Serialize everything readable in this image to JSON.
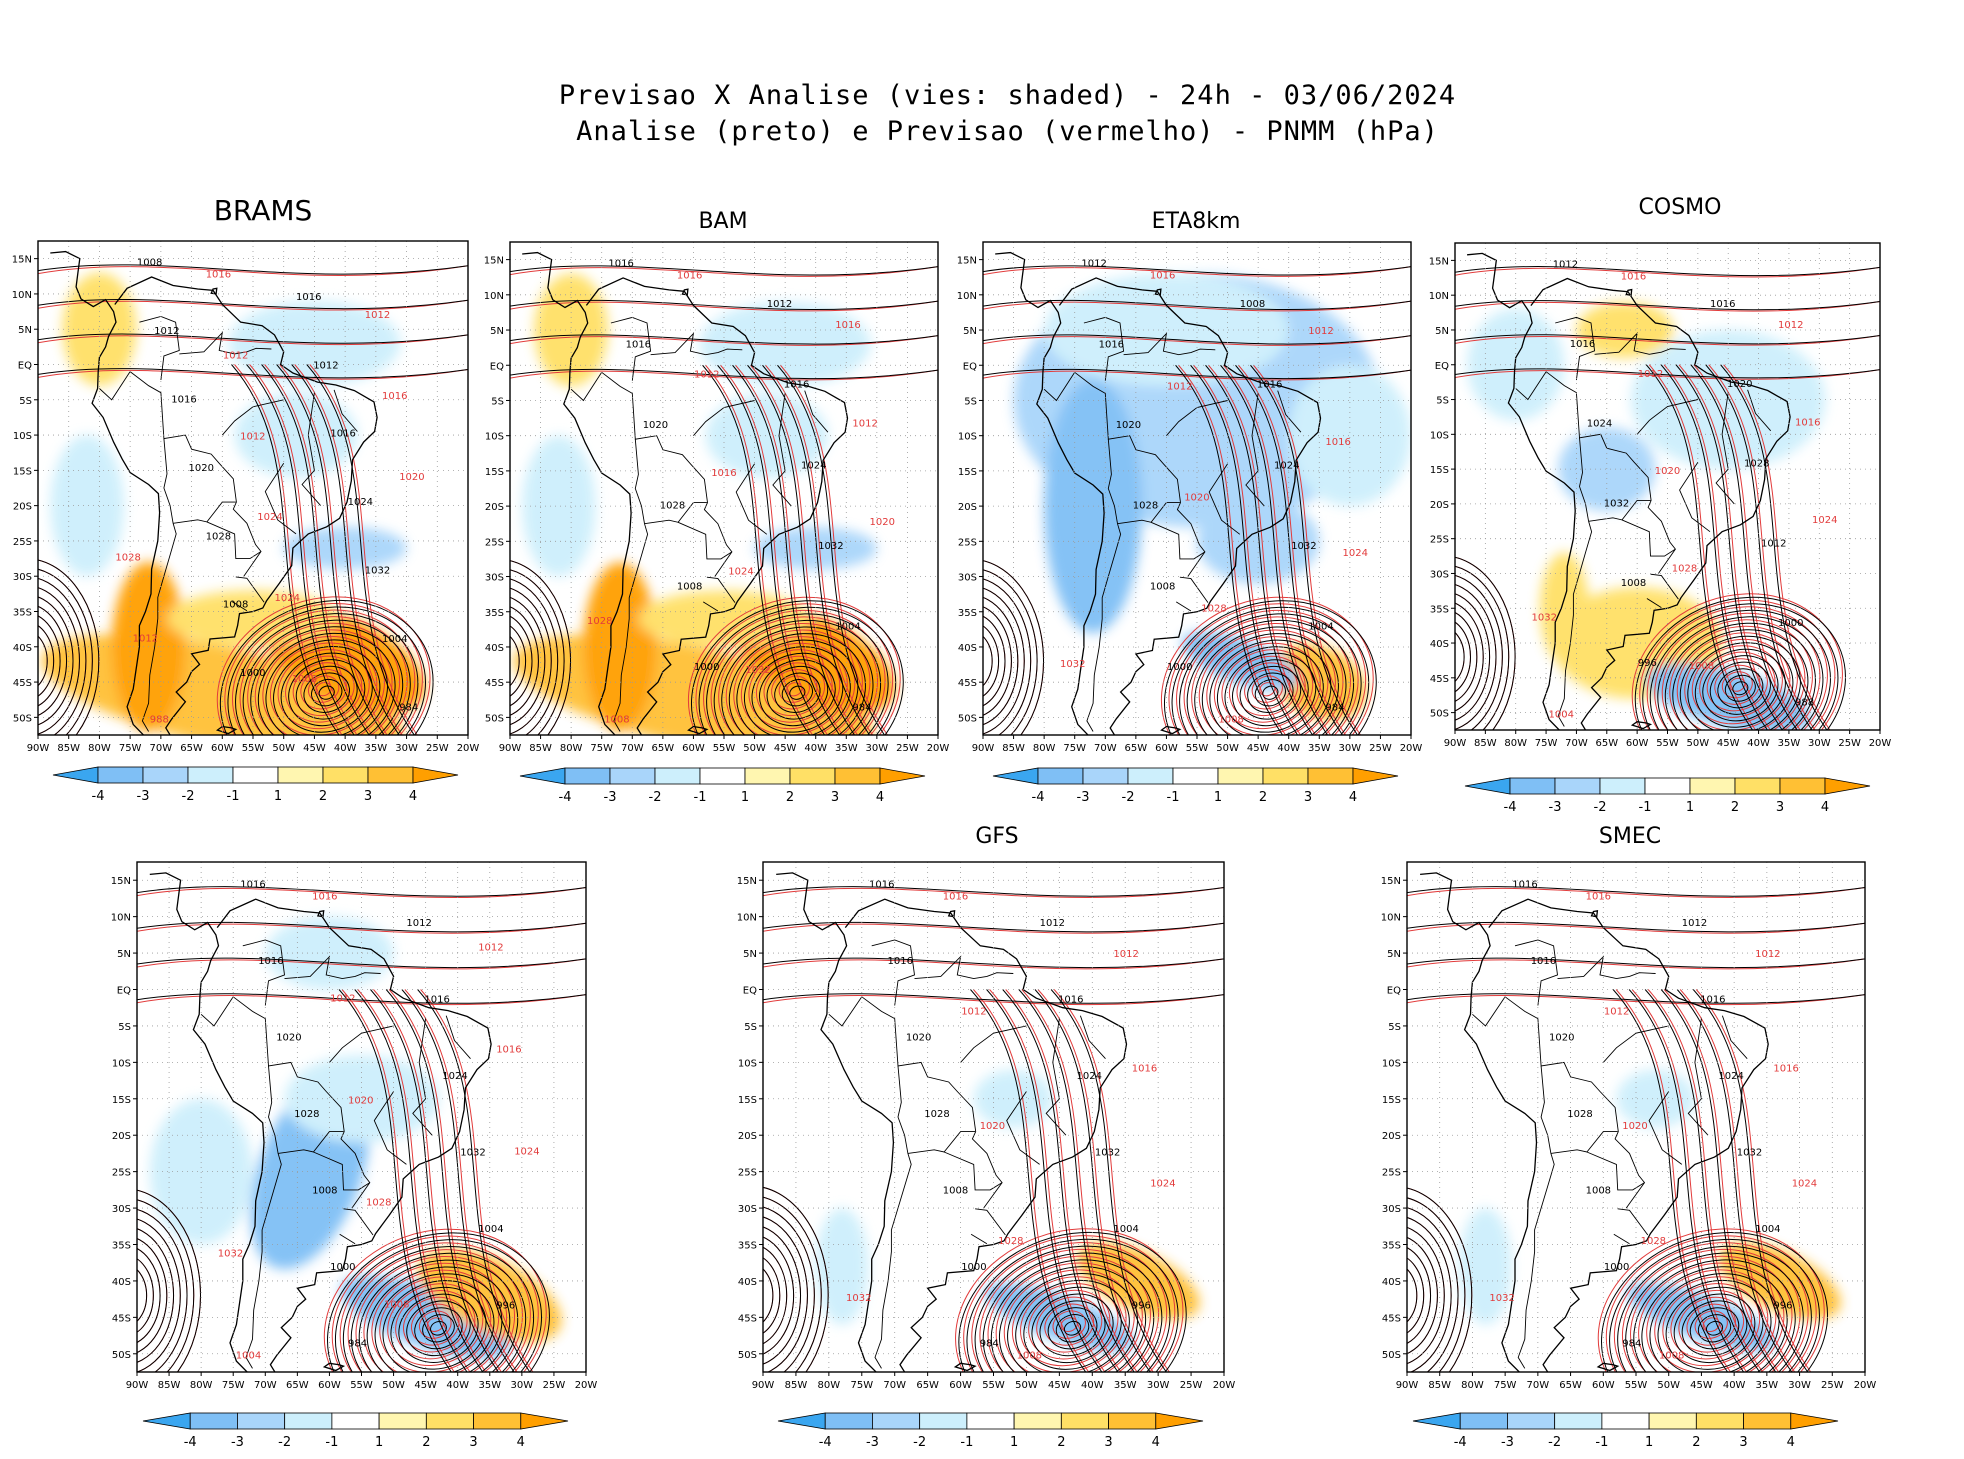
{
  "title": {
    "line1": "Previsao X Analise (vies: shaded) - 24h - 03/06/2024",
    "line2": "Analise (preto) e Previsao (vermelho) - PNMM (hPa)"
  },
  "axes": {
    "lon_labels": [
      "90W",
      "85W",
      "80W",
      "75W",
      "70W",
      "65W",
      "60W",
      "55W",
      "50W",
      "45W",
      "40W",
      "35W",
      "30W",
      "25W",
      "20W"
    ],
    "lat_labels": [
      "15N",
      "10N",
      "5N",
      "EQ",
      "5S",
      "10S",
      "15S",
      "20S",
      "25S",
      "30S",
      "35S",
      "40S",
      "45S",
      "50S"
    ]
  },
  "colorbar": {
    "labels": [
      "-4",
      "-3",
      "-2",
      "-1",
      "1",
      "2",
      "3",
      "4"
    ],
    "colors": [
      "#3aa6f0",
      "#7fbff5",
      "#a9d5fa",
      "#cdeffc",
      "#ffffff",
      "#fff6b0",
      "#ffe066",
      "#ffc034",
      "#ff9f00"
    ]
  },
  "colors": {
    "analysis_isobar": "#000000",
    "forecast_isobar": "#e23b3b",
    "coast": "#000000",
    "grid": "#9a9a9a"
  },
  "panels": [
    {
      "name": "BRAMS",
      "title": "BRAMS",
      "bias": "warm-south",
      "black_labels": [
        "1008",
        "1016",
        "1012",
        "1012",
        "1016",
        "1016",
        "1020",
        "1024",
        "1028",
        "1032",
        "1008",
        "1004",
        "1000",
        "984"
      ],
      "red_labels": [
        "1016",
        "1012",
        "1012",
        "1016",
        "1012",
        "1020",
        "1024",
        "1028",
        "1024",
        "1012",
        "1008",
        "988"
      ]
    },
    {
      "name": "BAM",
      "title": "BAM",
      "bias": "warm-south",
      "black_labels": [
        "1016",
        "1012",
        "1016",
        "1016",
        "1020",
        "1024",
        "1028",
        "1032",
        "1008",
        "1004",
        "1000",
        "984"
      ],
      "red_labels": [
        "1016",
        "1016",
        "1012",
        "1012",
        "1016",
        "1020",
        "1024",
        "1028",
        "1032",
        "1008"
      ]
    },
    {
      "name": "ETA8km",
      "title": "ETA8km",
      "bias": "cold",
      "black_labels": [
        "1012",
        "1008",
        "1016",
        "1016",
        "1020",
        "1024",
        "1028",
        "1032",
        "1008",
        "1004",
        "1000",
        "984"
      ],
      "red_labels": [
        "1016",
        "1012",
        "1012",
        "1016",
        "1020",
        "1024",
        "1028",
        "1032",
        "1008"
      ]
    },
    {
      "name": "COSMO",
      "title": "COSMO",
      "bias": "mixed",
      "black_labels": [
        "1012",
        "1016",
        "1016",
        "1020",
        "1024",
        "1028",
        "1032",
        "1012",
        "1008",
        "1000",
        "996",
        "988"
      ],
      "red_labels": [
        "1016",
        "1012",
        "1012",
        "1016",
        "1020",
        "1024",
        "1028",
        "1032",
        "1008",
        "1004"
      ]
    },
    {
      "name": "unlabeled",
      "title": "",
      "bias": "cold-band",
      "black_labels": [
        "1016",
        "1012",
        "1016",
        "1016",
        "1020",
        "1024",
        "1028",
        "1032",
        "1008",
        "1004",
        "1000",
        "996",
        "984"
      ],
      "red_labels": [
        "1016",
        "1012",
        "1012",
        "1016",
        "1020",
        "1024",
        "1028",
        "1032",
        "1008",
        "1004"
      ]
    },
    {
      "name": "GFS",
      "title": "GFS",
      "bias": "weak",
      "black_labels": [
        "1016",
        "1012",
        "1016",
        "1016",
        "1020",
        "1024",
        "1028",
        "1032",
        "1008",
        "1004",
        "1000",
        "996",
        "984"
      ],
      "red_labels": [
        "1016",
        "1012",
        "1012",
        "1016",
        "1020",
        "1024",
        "1028",
        "1032",
        "1008"
      ]
    },
    {
      "name": "SMEC",
      "title": "SMEC",
      "bias": "weak",
      "black_labels": [
        "1016",
        "1012",
        "1016",
        "1016",
        "1020",
        "1024",
        "1028",
        "1032",
        "1008",
        "1004",
        "1000",
        "996",
        "984"
      ],
      "red_labels": [
        "1016",
        "1012",
        "1012",
        "1016",
        "1020",
        "1024",
        "1028",
        "1032",
        "1008"
      ]
    }
  ]
}
